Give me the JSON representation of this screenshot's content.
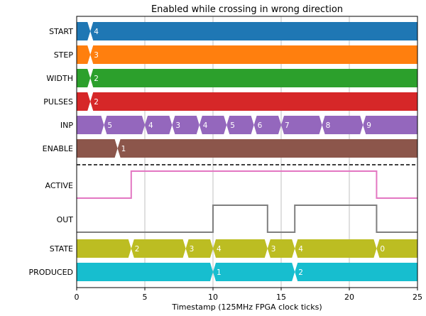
{
  "chart_data": {
    "type": "timing",
    "title": "Enabled while crossing in wrong direction",
    "xlabel": "Timestamp (125MHz FPGA clock ticks)",
    "xlim": [
      0,
      25
    ],
    "xticks": [
      0,
      5,
      10,
      15,
      20,
      25
    ],
    "grid": "vertical",
    "bus_signals_top": [
      {
        "name": "START",
        "color": "#1f77b4",
        "segments": [
          {
            "start": 0,
            "label": ""
          },
          {
            "start": 1,
            "label": "4"
          }
        ]
      },
      {
        "name": "STEP",
        "color": "#ff7f0e",
        "segments": [
          {
            "start": 0,
            "label": ""
          },
          {
            "start": 1,
            "label": "3"
          }
        ]
      },
      {
        "name": "WIDTH",
        "color": "#2ca02c",
        "segments": [
          {
            "start": 0,
            "label": ""
          },
          {
            "start": 1,
            "label": "2"
          }
        ]
      },
      {
        "name": "PULSES",
        "color": "#d62728",
        "segments": [
          {
            "start": 0,
            "label": ""
          },
          {
            "start": 1,
            "label": "2"
          }
        ]
      },
      {
        "name": "INP",
        "color": "#9467bd",
        "segments": [
          {
            "start": 0,
            "label": ""
          },
          {
            "start": 2,
            "label": "5"
          },
          {
            "start": 5,
            "label": "4"
          },
          {
            "start": 7,
            "label": "3"
          },
          {
            "start": 9,
            "label": "4"
          },
          {
            "start": 11,
            "label": "5"
          },
          {
            "start": 13,
            "label": "6"
          },
          {
            "start": 15,
            "label": "7"
          },
          {
            "start": 18,
            "label": "8"
          },
          {
            "start": 21,
            "label": "9"
          }
        ]
      },
      {
        "name": "ENABLE",
        "color": "#8c564b",
        "segments": [
          {
            "start": 0,
            "label": ""
          },
          {
            "start": 3,
            "label": "1"
          }
        ]
      }
    ],
    "bit_signals": [
      {
        "name": "ACTIVE",
        "color": "#e377c2",
        "steps": [
          [
            0,
            0
          ],
          [
            4,
            1
          ],
          [
            22,
            0
          ],
          [
            25,
            0
          ]
        ]
      },
      {
        "name": "OUT",
        "color": "#7f7f7f",
        "steps": [
          [
            0,
            0
          ],
          [
            10,
            1
          ],
          [
            14,
            0
          ],
          [
            16,
            1
          ],
          [
            22,
            0
          ],
          [
            25,
            0
          ]
        ]
      }
    ],
    "bus_signals_bottom": [
      {
        "name": "STATE",
        "color": "#bcbd22",
        "segments": [
          {
            "start": 0,
            "label": ""
          },
          {
            "start": 4,
            "label": "2"
          },
          {
            "start": 8,
            "label": "3"
          },
          {
            "start": 10,
            "label": "4"
          },
          {
            "start": 14,
            "label": "3"
          },
          {
            "start": 16,
            "label": "4"
          },
          {
            "start": 22,
            "label": "0"
          }
        ]
      },
      {
        "name": "PRODUCED",
        "color": "#17becf",
        "segments": [
          {
            "start": 0,
            "label": ""
          },
          {
            "start": 10,
            "label": "1"
          },
          {
            "start": 16,
            "label": "2"
          }
        ]
      }
    ]
  }
}
